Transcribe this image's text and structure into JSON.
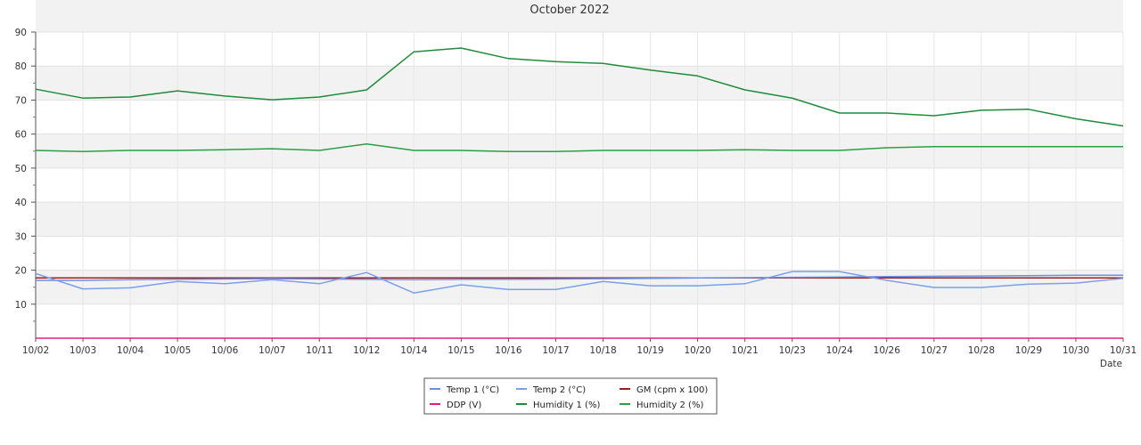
{
  "chart_data": {
    "type": "line",
    "title": "October 2022",
    "xlabel": "Date",
    "ylabel": "",
    "ylim": [
      0,
      90
    ],
    "yticks": [
      10,
      20,
      30,
      40,
      50,
      60,
      70,
      80,
      90
    ],
    "grid": true,
    "legend_position": "bottom-center",
    "categories": [
      "10/02",
      "10/03",
      "10/04",
      "10/05",
      "10/06",
      "10/07",
      "10/11",
      "10/12",
      "10/14",
      "10/15",
      "10/16",
      "10/17",
      "10/18",
      "10/19",
      "10/20",
      "10/21",
      "10/23",
      "10/24",
      "10/26",
      "10/27",
      "10/28",
      "10/29",
      "10/30",
      "10/31"
    ],
    "series": [
      {
        "name": "Temp 1 (°C)",
        "color": "#6b8fe8",
        "values": [
          17.0,
          17.0,
          17.2,
          17.3,
          17.4,
          17.5,
          17.4,
          17.3,
          17.2,
          17.3,
          17.3,
          17.4,
          17.5,
          17.6,
          17.7,
          17.8,
          17.9,
          18.0,
          18.1,
          18.2,
          18.3,
          18.4,
          18.5,
          18.5
        ]
      },
      {
        "name": "Temp 2 (°C)",
        "color": "#7aa0ec",
        "values": [
          19.0,
          14.5,
          14.8,
          16.7,
          16.0,
          17.2,
          16.0,
          19.3,
          13.3,
          15.7,
          14.3,
          14.3,
          16.7,
          15.4,
          15.4,
          16.0,
          19.6,
          19.6,
          17.0,
          14.9,
          14.9,
          15.9,
          16.2,
          17.6
        ]
      },
      {
        "name": "GM (cpm x 100)",
        "color": "#a01c1c",
        "values": [
          17.7,
          17.7,
          17.7,
          17.7,
          17.7,
          17.7,
          17.7,
          17.7,
          17.7,
          17.7,
          17.7,
          17.7,
          17.7,
          17.7,
          17.7,
          17.7,
          17.7,
          17.7,
          17.7,
          17.7,
          17.7,
          17.7,
          17.7,
          17.7
        ]
      },
      {
        "name": "DDP (V)",
        "color": "#e0207a",
        "values": [
          0,
          0,
          0,
          0,
          0,
          0,
          0,
          0,
          0,
          0,
          0,
          0,
          0,
          0,
          0,
          0,
          0,
          0,
          0,
          0,
          0,
          0,
          0,
          0
        ]
      },
      {
        "name": "Humidity 1 (%)",
        "color": "#1e8c3a",
        "values": [
          73.2,
          70.6,
          70.9,
          72.7,
          71.2,
          70.1,
          70.9,
          73.0,
          84.2,
          85.3,
          82.2,
          81.3,
          80.8,
          78.8,
          77.1,
          73.0,
          70.6,
          66.2,
          66.2,
          65.4,
          67.0,
          67.3,
          64.5,
          62.4
        ]
      },
      {
        "name": "Humidity 2 (%)",
        "color": "#2aa046",
        "values": [
          55.2,
          54.9,
          55.2,
          55.2,
          55.4,
          55.7,
          55.2,
          57.1,
          55.2,
          55.2,
          54.9,
          54.9,
          55.2,
          55.2,
          55.2,
          55.4,
          55.2,
          55.2,
          56.0,
          56.3,
          56.3,
          56.3,
          56.3,
          56.3
        ]
      }
    ]
  }
}
